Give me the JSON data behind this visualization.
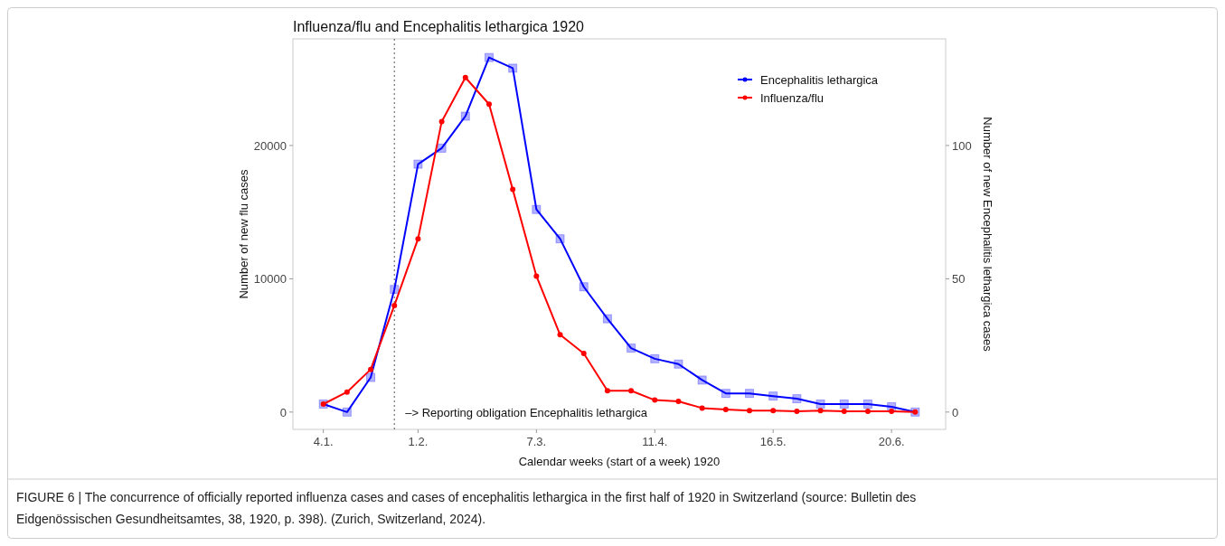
{
  "chart_data": {
    "type": "line",
    "title": "Influenza/flu and Encephalitis lethargica 1920",
    "xlabel": "Calendar weeks (start of a week) 1920",
    "ylabel": "Number of new flu cases",
    "y2label": "Number of new Encephalitis lethargica cases",
    "x": [
      "1920-01-04",
      "1920-01-11",
      "1920-01-18",
      "1920-01-25",
      "1920-02-01",
      "1920-02-08",
      "1920-02-15",
      "1920-02-22",
      "1920-02-29",
      "1920-03-07",
      "1920-03-14",
      "1920-03-21",
      "1920-03-28",
      "1920-04-04",
      "1920-04-11",
      "1920-04-18",
      "1920-04-25",
      "1920-05-02",
      "1920-05-09",
      "1920-05-16",
      "1920-05-23",
      "1920-05-30",
      "1920-06-06",
      "1920-06-13",
      "1920-06-20",
      "1920-06-27"
    ],
    "series": [
      {
        "name": "Encephalitis lethargica",
        "color": "#0000ff",
        "axis": "y2",
        "marker": "square",
        "values": [
          3,
          0,
          13,
          46,
          93,
          99,
          111,
          133,
          129,
          76,
          65,
          47,
          35,
          24,
          20,
          18,
          12,
          7,
          7,
          6,
          5,
          3,
          3,
          3,
          2,
          0
        ]
      },
      {
        "name": "Influenza/flu",
        "color": "#ff0000",
        "axis": "y",
        "marker": "circle",
        "values": [
          600,
          1500,
          3200,
          8000,
          13000,
          21800,
          25100,
          23100,
          16700,
          10200,
          5800,
          4400,
          1600,
          1600,
          900,
          800,
          300,
          200,
          100,
          100,
          50,
          100,
          50,
          50,
          50,
          0
        ]
      }
    ],
    "xlim": [
      "1919-12-26",
      "1920-07-06"
    ],
    "xticks": [
      {
        "value": "1920-01-04",
        "label": "4.1."
      },
      {
        "value": "1920-02-01",
        "label": "1.2."
      },
      {
        "value": "1920-03-07",
        "label": "7.3."
      },
      {
        "value": "1920-04-11",
        "label": "11.4."
      },
      {
        "value": "1920-05-16",
        "label": "16.5."
      },
      {
        "value": "1920-06-20",
        "label": "20.6."
      }
    ],
    "ylim": [
      -1300,
      28000
    ],
    "yticks": [
      0,
      10000,
      20000
    ],
    "y2lim": [
      -6.5,
      140
    ],
    "y2ticks": [
      0,
      50,
      100
    ],
    "ref_lines": [
      {
        "axis": "x",
        "value": "1920-01-25",
        "label": "–> Reporting obligation Encephalitis lethargica",
        "color": "#555555",
        "line_style": "dotted"
      }
    ],
    "legend": "top right",
    "grid": false,
    "annotations": [
      "FIGURE 6 | The concurrence of officially reported influenza cases and cases of encephalitis lethargica in the first half of 1920 in Switzerland (source: Bulletin des Eidgenössischen Gesundheitsamtes, 38, 1920, p. 398). (Zurich, Switzerland, 2024)."
    ]
  }
}
